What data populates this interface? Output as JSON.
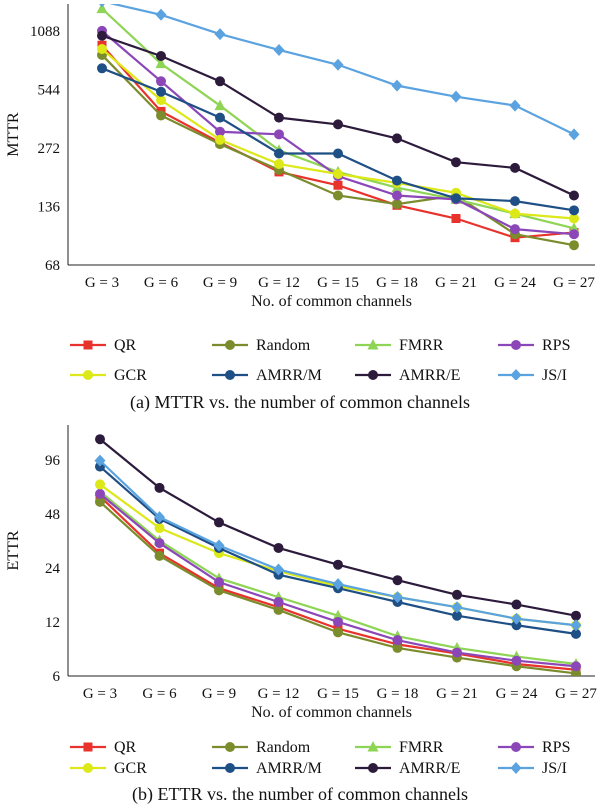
{
  "chart_data": [
    {
      "type": "line",
      "caption": "(a) MTTR vs. the number of common channels",
      "xlabel": "No. of common channels",
      "ylabel": "MTTR",
      "log_scale_y": true,
      "ylim": [
        68,
        1500
      ],
      "yticks": [
        68,
        136,
        272,
        544,
        1088
      ],
      "categories": [
        "G = 3",
        "G = 6",
        "G = 9",
        "G = 12",
        "G = 15",
        "G = 18",
        "G = 21",
        "G = 24",
        "G = 27"
      ],
      "grid": "none",
      "legend_position": "bottom",
      "series": [
        {
          "name": "QR",
          "color": "#e8322c",
          "marker": "square",
          "values": [
            920,
            420,
            290,
            205,
            175,
            138,
            118,
            94,
            100
          ]
        },
        {
          "name": "Random",
          "color": "#7b8c2c",
          "marker": "circle",
          "values": [
            820,
            400,
            285,
            210,
            155,
            140,
            155,
            98,
            86
          ]
        },
        {
          "name": "FMRR",
          "color": "#8ed455",
          "marker": "triangle",
          "values": [
            1420,
            740,
            450,
            265,
            205,
            170,
            148,
            125,
            105
          ]
        },
        {
          "name": "RPS",
          "color": "#8b47b8",
          "marker": "circle",
          "values": [
            1090,
            600,
            330,
            320,
            195,
            155,
            148,
            104,
            98
          ]
        },
        {
          "name": "GCR",
          "color": "#dce817",
          "marker": "circle",
          "values": [
            880,
            480,
            300,
            225,
            200,
            180,
            160,
            125,
            118
          ]
        },
        {
          "name": "AMRR/M",
          "color": "#1e4f85",
          "marker": "circle",
          "values": [
            700,
            530,
            390,
            255,
            255,
            185,
            150,
            145,
            130
          ]
        },
        {
          "name": "AMRR/E",
          "color": "#2d1b3c",
          "marker": "circle",
          "values": [
            1030,
            810,
            600,
            390,
            360,
            305,
            230,
            215,
            155
          ]
        },
        {
          "name": "JS/I",
          "color": "#5ba3e0",
          "marker": "diamond",
          "values": [
            1550,
            1320,
            1050,
            870,
            730,
            570,
            500,
            450,
            320
          ]
        }
      ]
    },
    {
      "type": "line",
      "caption": "(b) ETTR vs. the number of common channels",
      "xlabel": "No. of common channels",
      "ylabel": "ETTR",
      "log_scale_y": true,
      "ylim": [
        6,
        150
      ],
      "yticks": [
        6,
        12,
        24,
        48,
        96
      ],
      "categories": [
        "G = 3",
        "G = 6",
        "G = 9",
        "G = 12",
        "G = 15",
        "G = 18",
        "G = 21",
        "G = 24",
        "G = 27"
      ],
      "grid": "none",
      "legend_position": "bottom",
      "series": [
        {
          "name": "QR",
          "color": "#e8322c",
          "marker": "square",
          "values": [
            60,
            29,
            18.5,
            14.5,
            11,
            9,
            8,
            7,
            6.5
          ]
        },
        {
          "name": "Random",
          "color": "#7b8c2c",
          "marker": "circle",
          "values": [
            56,
            28,
            18,
            14,
            10.5,
            8.6,
            7.6,
            6.8,
            6.2
          ]
        },
        {
          "name": "FMRR",
          "color": "#8ed455",
          "marker": "triangle",
          "values": [
            64,
            34,
            21,
            16.5,
            13,
            10,
            8.6,
            7.7,
            7
          ]
        },
        {
          "name": "RPS",
          "color": "#8b47b8",
          "marker": "circle",
          "values": [
            62,
            33,
            20,
            15.5,
            12,
            9.5,
            8.1,
            7.3,
            6.8
          ]
        },
        {
          "name": "GCR",
          "color": "#dce817",
          "marker": "circle",
          "values": [
            70,
            40,
            29,
            23,
            19,
            16.5,
            14.5,
            12.5,
            11.5
          ]
        },
        {
          "name": "AMRR/M",
          "color": "#1e4f85",
          "marker": "circle",
          "values": [
            88,
            45,
            31,
            22,
            18.5,
            15.5,
            13,
            11.5,
            10.3
          ]
        },
        {
          "name": "AMRR/E",
          "color": "#2d1b3c",
          "marker": "circle",
          "values": [
            125,
            67,
            43,
            31,
            25,
            20.5,
            17,
            15,
            13
          ]
        },
        {
          "name": "JS/I",
          "color": "#5ba3e0",
          "marker": "diamond",
          "values": [
            95,
            46,
            32,
            23.5,
            19.5,
            16.5,
            14.5,
            12.5,
            11.5
          ]
        }
      ]
    }
  ]
}
